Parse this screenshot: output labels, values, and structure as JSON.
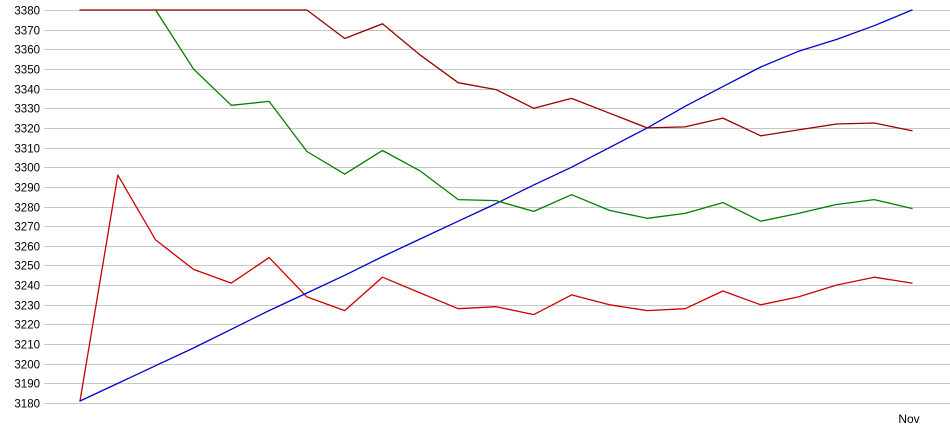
{
  "chart_data": {
    "type": "line",
    "title": "",
    "x_axis_label": "Nov",
    "x_axis": {
      "visible_label": "Nov",
      "label_position": "bottom-right"
    },
    "y_axis": {
      "min": 3180,
      "max": 3380,
      "tick_step": 10,
      "ticks": [
        "3380",
        "3370",
        "3360",
        "3350",
        "3340",
        "3330",
        "3320",
        "3310",
        "3300",
        "3290",
        "3280",
        "3270",
        "3260",
        "3250",
        "3240",
        "3230",
        "3220",
        "3210",
        "3200",
        "3190",
        "3180"
      ]
    },
    "grid": true,
    "legend": "none",
    "num_points": 23,
    "series": [
      {
        "name": "bright-red-line",
        "color": "#cc0000",
        "values": [
          3181,
          3296,
          3263,
          3248,
          3241,
          3254,
          3234,
          3227,
          3244,
          3236,
          3228,
          3229,
          3225,
          3235,
          3230,
          3227,
          3228,
          3237,
          3230,
          3234,
          3240,
          3244,
          3241
        ]
      },
      {
        "name": "blue-line",
        "color": "#0000cc",
        "values": [
          3181,
          3190,
          3199,
          3208,
          3217.5,
          3227,
          3236,
          3245,
          3254.5,
          3263.5,
          3272.5,
          3281.5,
          3291,
          3300,
          3310,
          3320,
          3331,
          3341,
          3351,
          3359,
          3365,
          3372,
          3380
        ]
      },
      {
        "name": "green-line",
        "color": "#008000",
        "values": [
          null,
          null,
          3380,
          3350,
          3331.5,
          3333.5,
          3308,
          3296.5,
          3308.5,
          3298,
          3283.5,
          3283,
          3277.5,
          3286,
          3278,
          3274,
          3276.5,
          3282,
          3272.5,
          3276.5,
          3281,
          3283.5,
          3279
        ]
      },
      {
        "name": "maroon-line",
        "color": "#990000",
        "values": [
          3380,
          3380,
          3380,
          3380,
          3380,
          3380,
          3380,
          3365.5,
          3373,
          3357,
          3343,
          3339.5,
          3330,
          3335,
          3327.5,
          3320,
          3320.5,
          3325,
          3316,
          3319,
          3322,
          3322.5,
          3318.5
        ]
      }
    ],
    "colors": {
      "gridline": "#c6c6c6",
      "tick_text": "#000000",
      "background": "#ffffff"
    }
  }
}
